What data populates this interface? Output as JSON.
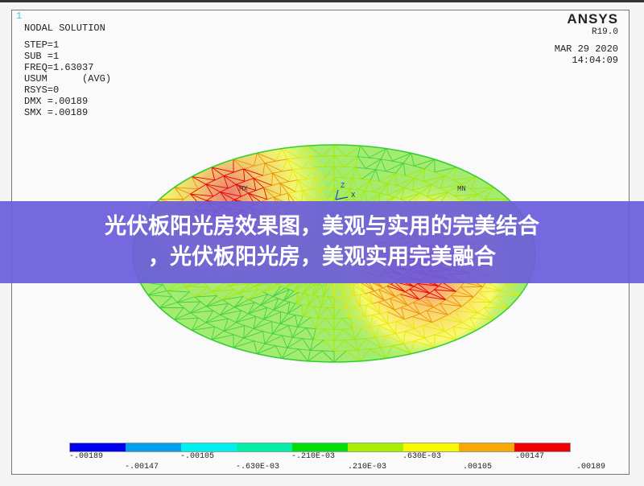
{
  "window_number": "1",
  "info": {
    "title": "NODAL SOLUTION",
    "lines": [
      "STEP=1",
      "SUB =1",
      "FREQ=1.63037",
      "USUM      (AVG)",
      "RSYS=0",
      "DMX =.00189",
      "SMX =.00189"
    ]
  },
  "logo": {
    "name": "ANSYS",
    "version": "R19.0"
  },
  "date": "MAR 29 2020",
  "time": "14:04:09",
  "markers": {
    "max": "MX",
    "min": "MN",
    "axis_z": "Z",
    "axis_x": "X"
  },
  "legend": {
    "colors": [
      "#0000ee",
      "#00a0f0",
      "#00f0f0",
      "#00f0a8",
      "#00e000",
      "#a8f000",
      "#f8f800",
      "#f8a800",
      "#f00000"
    ],
    "labels_top": [
      "-.00189",
      "-.00105",
      "-.210E-03",
      ".630E-03",
      ".00147"
    ],
    "labels_bottom": [
      "-.00147",
      "-.630E-03",
      ".210E-03",
      ".00105",
      ".00189"
    ]
  },
  "banner": {
    "line1": "光伏板阳光房效果图，美观与实用的完美结合",
    "line2": "，光伏板阳光房，美观实用完美融合"
  }
}
